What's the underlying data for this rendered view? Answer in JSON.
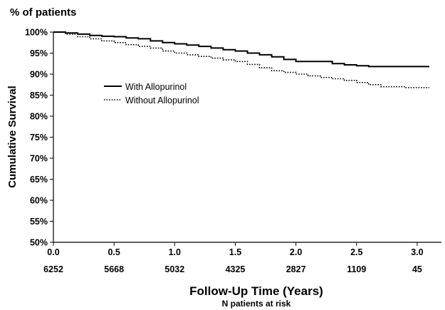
{
  "chart_data": {
    "type": "line",
    "title": "% of patients",
    "ylabel": "Cumulative Survival",
    "xlabel": "Follow-Up Time (Years)",
    "xsublabel": "N patients at risk",
    "xlim": [
      0,
      3.2
    ],
    "ylim": [
      50,
      100
    ],
    "x_ticks": [
      {
        "value": 0,
        "label": "0.0"
      },
      {
        "value": 0.5,
        "label": "0.5"
      },
      {
        "value": 1,
        "label": "1.0"
      },
      {
        "value": 1.5,
        "label": "1.5"
      },
      {
        "value": 2,
        "label": "2.0"
      },
      {
        "value": 2.5,
        "label": "2.5"
      },
      {
        "value": 3,
        "label": "3.0"
      }
    ],
    "y_ticks": [
      {
        "value": 100,
        "label": "100%"
      },
      {
        "value": 95,
        "label": "95%"
      },
      {
        "value": 90,
        "label": "90%"
      },
      {
        "value": 85,
        "label": "85%"
      },
      {
        "value": 80,
        "label": "80%"
      },
      {
        "value": 75,
        "label": "75%"
      },
      {
        "value": 70,
        "label": "70%"
      },
      {
        "value": 65,
        "label": "65%"
      },
      {
        "value": 60,
        "label": "60%"
      },
      {
        "value": 55,
        "label": "55%"
      },
      {
        "value": 50,
        "label": "50%"
      }
    ],
    "at_risk": [
      {
        "value": 0,
        "label": "6252"
      },
      {
        "value": 0.5,
        "label": "5668"
      },
      {
        "value": 1,
        "label": "5032"
      },
      {
        "value": 1.5,
        "label": "4325"
      },
      {
        "value": 2,
        "label": "2827"
      },
      {
        "value": 2.5,
        "label": "1109"
      },
      {
        "value": 3,
        "label": "45"
      }
    ],
    "legend_position": "upper-left",
    "grid": false,
    "series": [
      {
        "name": "With Allopurinol",
        "style": "solid",
        "color": "#000000",
        "x": [
          0,
          0.1,
          0.2,
          0.3,
          0.4,
          0.5,
          0.6,
          0.7,
          0.8,
          0.9,
          1.0,
          1.1,
          1.2,
          1.3,
          1.4,
          1.5,
          1.6,
          1.7,
          1.8,
          1.9,
          2.0,
          2.1,
          2.2,
          2.3,
          2.4,
          2.5,
          2.6,
          2.7,
          2.8,
          2.9,
          3.0,
          3.1
        ],
        "y": [
          100,
          99.8,
          99.5,
          99.2,
          99.0,
          98.9,
          98.6,
          98.4,
          97.9,
          97.5,
          97.2,
          96.9,
          96.6,
          96.2,
          95.8,
          95.5,
          95.0,
          94.6,
          94.1,
          93.5,
          93.0,
          93.0,
          93.0,
          92.5,
          92.2,
          92.0,
          91.8,
          91.8,
          91.8,
          91.8,
          91.8,
          91.8
        ]
      },
      {
        "name": "Without Allopurinol",
        "style": "dotted",
        "color": "#000000",
        "x": [
          0,
          0.1,
          0.2,
          0.3,
          0.4,
          0.5,
          0.6,
          0.7,
          0.8,
          0.9,
          1.0,
          1.1,
          1.2,
          1.3,
          1.4,
          1.5,
          1.6,
          1.7,
          1.8,
          1.9,
          2.0,
          2.1,
          2.2,
          2.3,
          2.4,
          2.5,
          2.6,
          2.7,
          2.8,
          2.9,
          3.0,
          3.1
        ],
        "y": [
          100,
          99.5,
          98.9,
          98.4,
          97.9,
          97.5,
          97.0,
          96.6,
          96.2,
          95.5,
          95.0,
          94.6,
          94.2,
          93.8,
          93.4,
          93.0,
          92.3,
          91.5,
          90.8,
          90.4,
          90.0,
          89.6,
          89.2,
          88.9,
          88.5,
          88.0,
          87.5,
          87.0,
          87.0,
          86.8,
          86.8,
          86.8
        ]
      }
    ]
  }
}
